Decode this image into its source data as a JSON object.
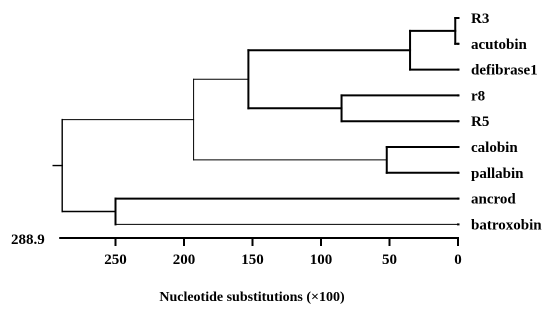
{
  "tree": {
    "leaves": [
      "R3",
      "acutobin",
      "defibrase1",
      "r8",
      "R5",
      "calobin",
      "pallabin",
      "ancrod",
      "batroxobin"
    ],
    "nodes": [
      {
        "children": [
          "R3",
          "acutobin"
        ],
        "height": 2
      },
      {
        "children": [
          "R3|acutobin",
          "defibrase1"
        ],
        "height": 35
      },
      {
        "children": [
          "r8",
          "R5"
        ],
        "height": 85
      },
      {
        "children": [
          "R3|acutobin|defibrase1",
          "r8|R5"
        ],
        "height": 153
      },
      {
        "children": [
          "calobin",
          "pallabin"
        ],
        "height": 52
      },
      {
        "children": [
          "R3|acutobin|defibrase1|r8|R5",
          "calobin|pallabin"
        ],
        "height": 193
      },
      {
        "children": [
          "ancrod",
          "batroxobin"
        ],
        "height": 250
      },
      {
        "children": [
          "R3|acutobin|defibrase1|r8|R5|calobin|pallabin",
          "ancrod|batroxobin"
        ],
        "height": 288.9
      }
    ]
  },
  "axis": {
    "max_label": "288.9",
    "ticks": [
      250,
      200,
      150,
      100,
      50,
      0
    ],
    "title": "Nucleotide substitutions (×100)"
  }
}
